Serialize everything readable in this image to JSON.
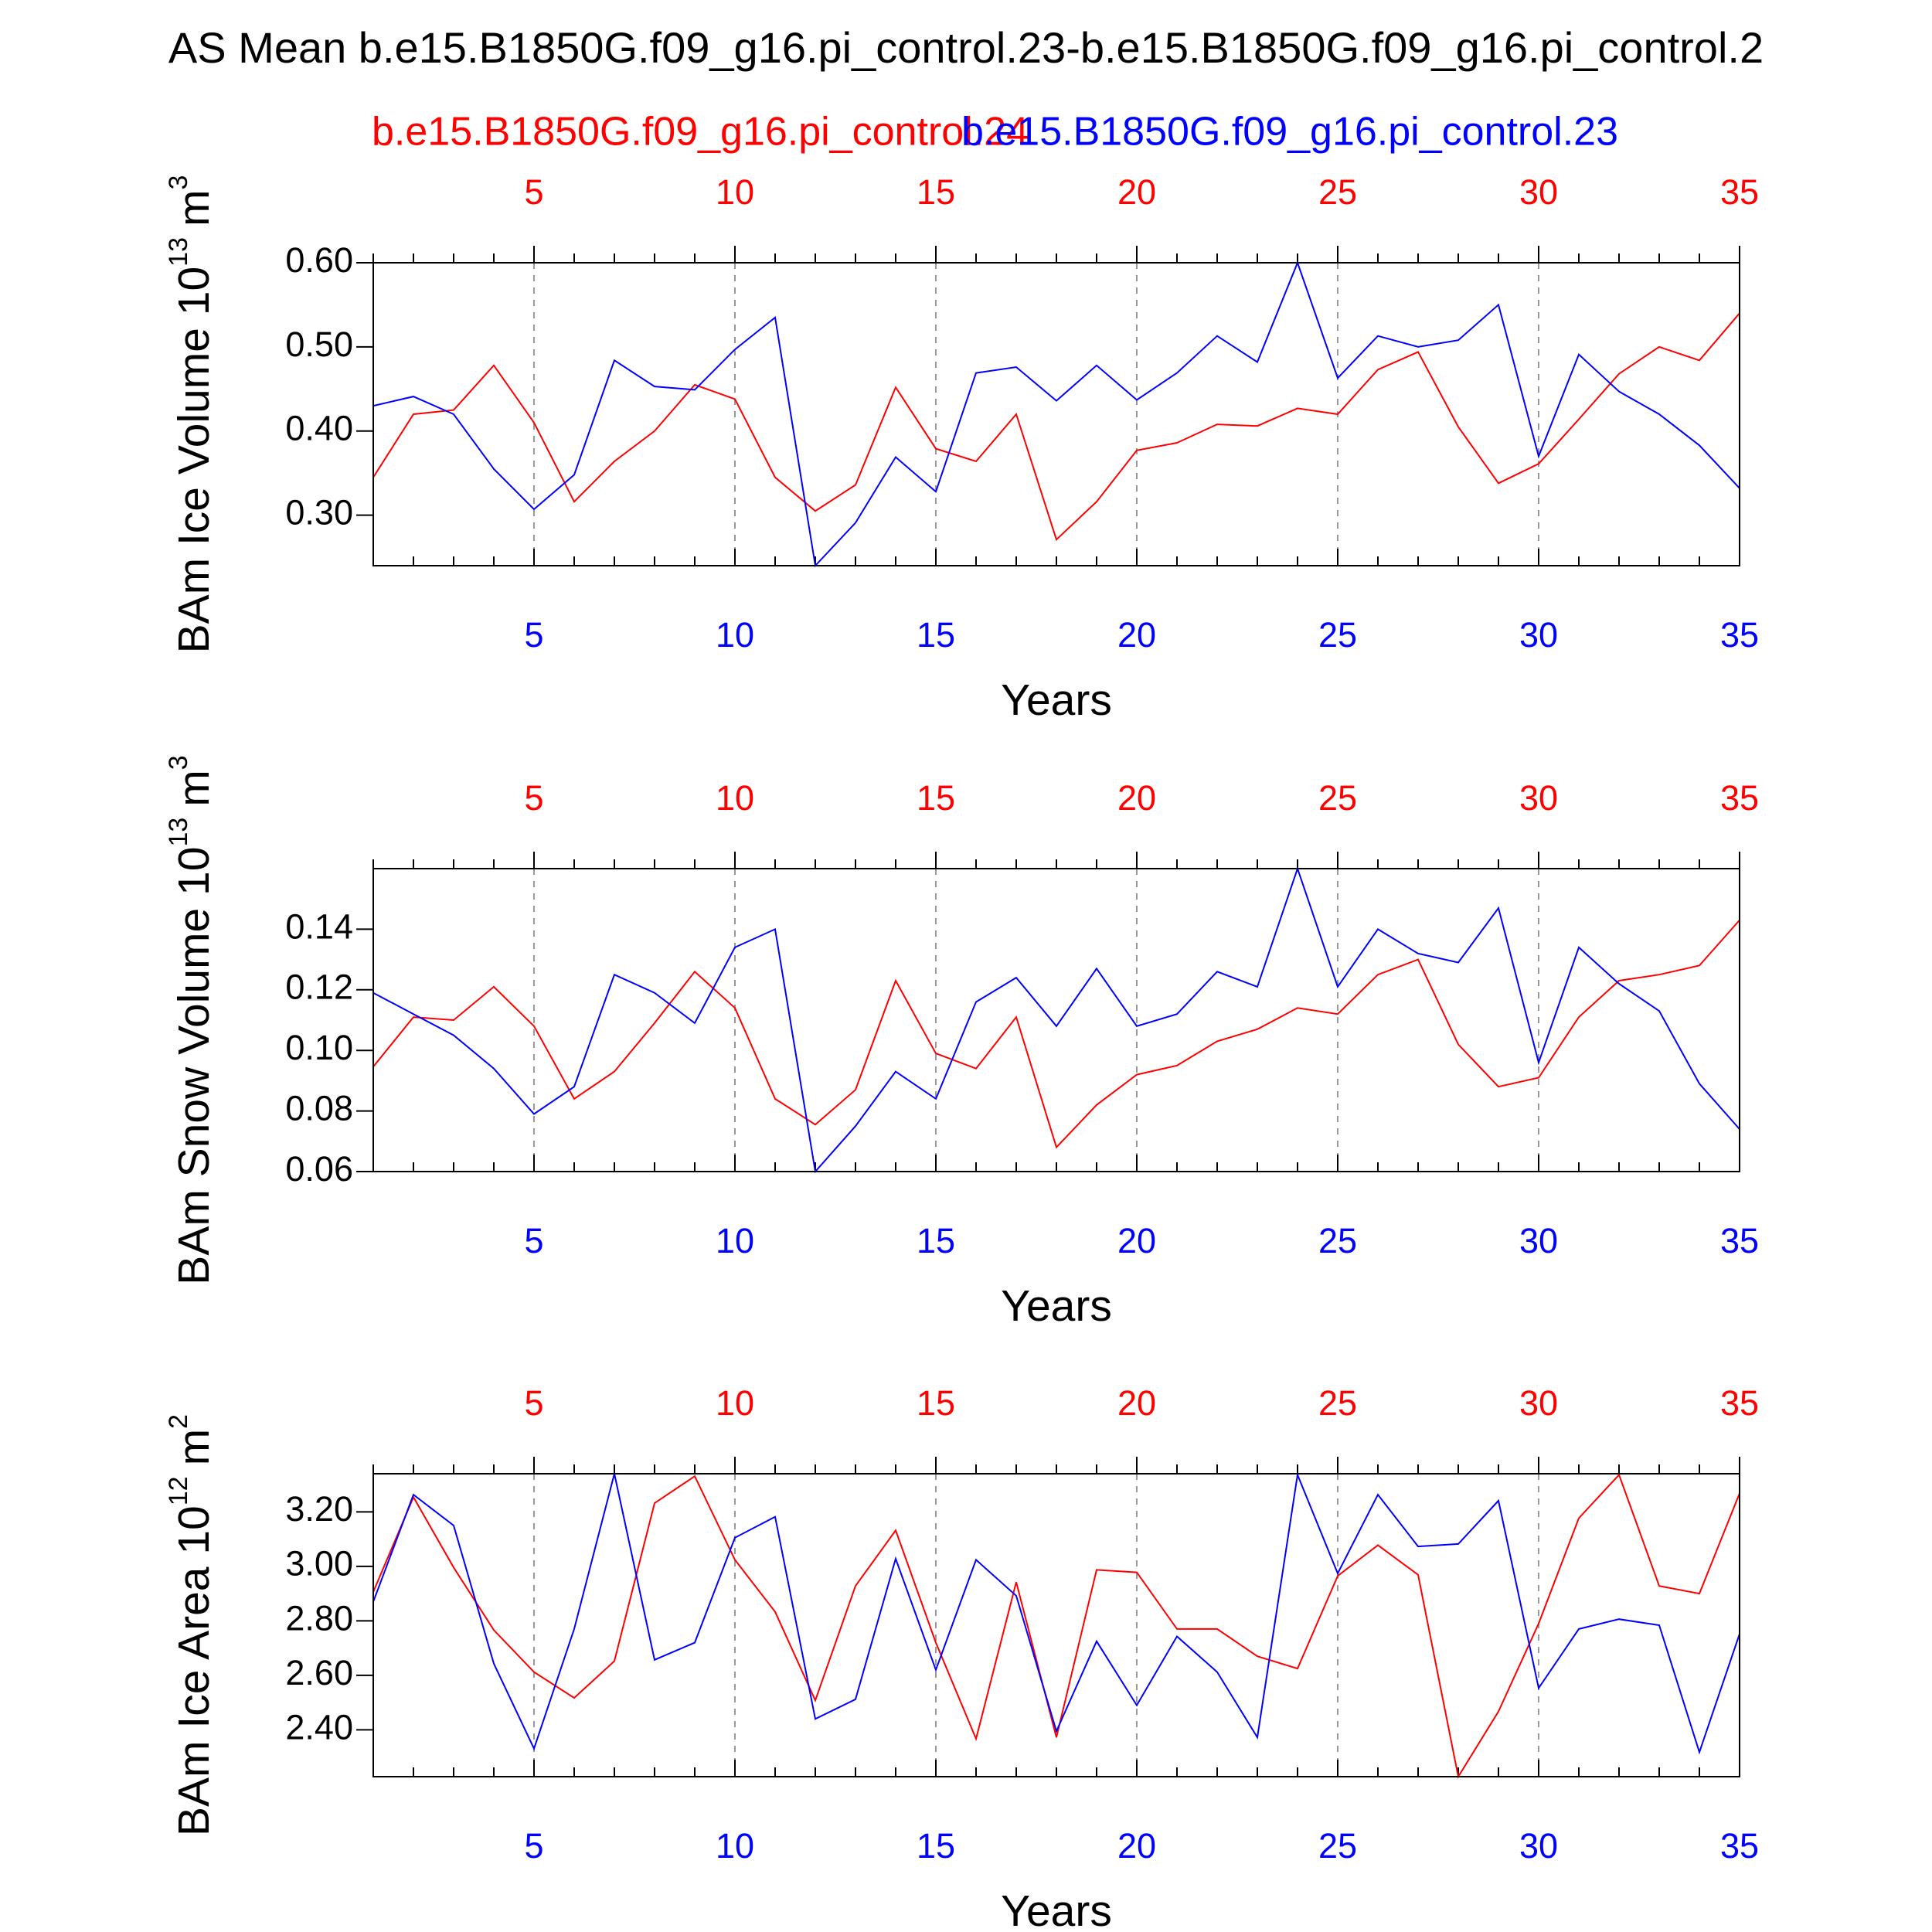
{
  "title": "AS Mean b.e15.B1850G.f09_g16.pi_control.23-b.e15.B1850G.f09_g16.pi_control.2",
  "chart_data": [
    {
      "type": "line",
      "ylabel": "BAm Ice Volume 10",
      "ylabel_exp": "13",
      "ylabel_unit": "m",
      "ylabel_unit_exp": "3",
      "xlabel": "Years",
      "x": [
        1,
        2,
        3,
        4,
        5,
        6,
        7,
        8,
        9,
        10,
        11,
        12,
        13,
        14,
        15,
        16,
        17,
        18,
        19,
        20,
        21,
        22,
        23,
        24,
        25,
        26,
        27,
        28,
        29,
        30,
        31,
        32,
        33,
        34,
        35
      ],
      "xlim": [
        1,
        35
      ],
      "xticks": [
        5,
        10,
        15,
        20,
        25,
        30,
        35
      ],
      "x2lim": [
        1,
        35
      ],
      "x2ticks": [
        5,
        10,
        15,
        20,
        25,
        30,
        35
      ],
      "ylim": [
        0.24,
        0.6
      ],
      "yticks": [
        {
          "value": 0.3,
          "label": "0.30"
        },
        {
          "value": 0.4,
          "label": "0.40"
        },
        {
          "value": 0.5,
          "label": "0.50"
        },
        {
          "value": 0.6,
          "label": "0.60"
        }
      ],
      "grid": true,
      "series": [
        {
          "name": "b.e15.B1850G.f09_g16.pi_control.24",
          "color": "#ff0000",
          "axis": "x2",
          "values": [
            0.345,
            0.42,
            0.425,
            0.478,
            0.41,
            0.316,
            0.364,
            0.4,
            0.455,
            0.438,
            0.345,
            0.305,
            0.336,
            0.452,
            0.379,
            0.364,
            0.42,
            0.271,
            0.316,
            0.377,
            0.386,
            0.408,
            0.406,
            0.427,
            0.42,
            0.473,
            0.494,
            0.405,
            0.338,
            0.361,
            0.414,
            0.468,
            0.5,
            0.484,
            0.54
          ]
        },
        {
          "name": "b.e15.B1850G.f09_g16.pi_control.23",
          "color": "#0000ff",
          "values": [
            0.43,
            0.441,
            0.42,
            0.355,
            0.307,
            0.348,
            0.484,
            0.453,
            0.449,
            0.497,
            0.535,
            0.24,
            0.291,
            0.369,
            0.328,
            0.469,
            0.476,
            0.436,
            0.478,
            0.437,
            0.469,
            0.513,
            0.482,
            0.6,
            0.463,
            0.513,
            0.5,
            0.508,
            0.55,
            0.37,
            0.491,
            0.447,
            0.42,
            0.383,
            0.332
          ]
        }
      ]
    },
    {
      "type": "line",
      "ylabel": "BAm Snow Volume 10",
      "ylabel_exp": "13",
      "ylabel_unit": "m",
      "ylabel_unit_exp": "3",
      "xlabel": "Years",
      "x": [
        1,
        2,
        3,
        4,
        5,
        6,
        7,
        8,
        9,
        10,
        11,
        12,
        13,
        14,
        15,
        16,
        17,
        18,
        19,
        20,
        21,
        22,
        23,
        24,
        25,
        26,
        27,
        28,
        29,
        30,
        31,
        32,
        33,
        34,
        35
      ],
      "xlim": [
        1,
        35
      ],
      "xticks": [
        5,
        10,
        15,
        20,
        25,
        30,
        35
      ],
      "x2lim": [
        1,
        35
      ],
      "x2ticks": [
        5,
        10,
        15,
        20,
        25,
        30,
        35
      ],
      "ylim": [
        0.06,
        0.16
      ],
      "yticks": [
        {
          "value": 0.06,
          "label": "0.06"
        },
        {
          "value": 0.08,
          "label": "0.08"
        },
        {
          "value": 0.1,
          "label": "0.10"
        },
        {
          "value": 0.12,
          "label": "0.12"
        },
        {
          "value": 0.14,
          "label": "0.14"
        }
      ],
      "grid": true,
      "series": [
        {
          "color": "#ff0000",
          "axis": "x2",
          "values": [
            0.0946,
            0.111,
            0.11,
            0.121,
            0.108,
            0.084,
            0.093,
            0.109,
            0.126,
            0.114,
            0.084,
            0.0755,
            0.087,
            0.123,
            0.099,
            0.094,
            0.111,
            0.068,
            0.082,
            0.092,
            0.095,
            0.103,
            0.107,
            0.114,
            0.112,
            0.125,
            0.13,
            0.102,
            0.088,
            0.091,
            0.111,
            0.123,
            0.125,
            0.128,
            0.143
          ]
        },
        {
          "color": "#0000ff",
          "values": [
            0.119,
            0.112,
            0.105,
            0.094,
            0.079,
            0.088,
            0.125,
            0.119,
            0.109,
            0.134,
            0.14,
            0.06,
            0.075,
            0.093,
            0.084,
            0.116,
            0.124,
            0.108,
            0.127,
            0.108,
            0.112,
            0.126,
            0.121,
            0.16,
            0.121,
            0.14,
            0.132,
            0.129,
            0.147,
            0.096,
            0.134,
            0.122,
            0.113,
            0.089,
            0.074
          ]
        }
      ]
    },
    {
      "type": "line",
      "ylabel": "BAm Ice Area 10",
      "ylabel_exp": "12",
      "ylabel_unit": "m",
      "ylabel_unit_exp": "2",
      "xlabel": "Years",
      "x": [
        1,
        2,
        3,
        4,
        5,
        6,
        7,
        8,
        9,
        10,
        11,
        12,
        13,
        14,
        15,
        16,
        17,
        18,
        19,
        20,
        21,
        22,
        23,
        24,
        25,
        26,
        27,
        28,
        29,
        30,
        31,
        32,
        33,
        34,
        35
      ],
      "xlim": [
        1,
        35
      ],
      "xticks": [
        5,
        10,
        15,
        20,
        25,
        30,
        35
      ],
      "x2lim": [
        1,
        35
      ],
      "x2ticks": [
        5,
        10,
        15,
        20,
        25,
        30,
        35
      ],
      "ylim": [
        2.228,
        3.34
      ],
      "yticks": [
        {
          "value": 2.4,
          "label": "2.40"
        },
        {
          "value": 2.6,
          "label": "2.60"
        },
        {
          "value": 2.8,
          "label": "2.80"
        },
        {
          "value": 3.0,
          "label": "3.00"
        },
        {
          "value": 3.2,
          "label": "3.20"
        }
      ],
      "grid": true,
      "series": [
        {
          "color": "#ff0000",
          "axis": "x2",
          "values": [
            2.906,
            3.254,
            2.996,
            2.766,
            2.612,
            2.517,
            2.652,
            3.232,
            3.331,
            3.024,
            2.833,
            2.508,
            2.928,
            3.132,
            2.72,
            2.367,
            2.942,
            2.372,
            2.987,
            2.978,
            2.77,
            2.77,
            2.67,
            2.625,
            2.965,
            3.078,
            2.969,
            2.228,
            2.467,
            2.79,
            3.177,
            3.336,
            2.928,
            2.9,
            3.268
          ]
        },
        {
          "color": "#0000ff",
          "values": [
            2.87,
            3.263,
            3.15,
            2.643,
            2.331,
            2.77,
            3.34,
            2.657,
            2.72,
            3.105,
            3.182,
            2.44,
            2.512,
            3.028,
            2.62,
            3.024,
            2.892,
            2.395,
            2.725,
            2.49,
            2.743,
            2.612,
            2.372,
            3.336,
            2.974,
            3.263,
            3.073,
            3.082,
            3.241,
            2.553,
            2.77,
            2.806,
            2.784,
            2.318,
            2.752
          ]
        }
      ]
    }
  ]
}
